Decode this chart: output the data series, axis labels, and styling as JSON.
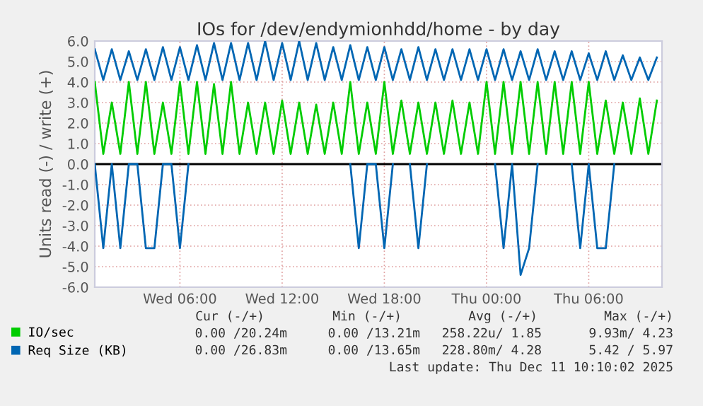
{
  "chart_data": {
    "type": "line",
    "title": "IOs for /dev/endymionhdd/home - by day",
    "ylabel": "Units read (-) / write (+)",
    "x": [
      "2025-12-10T01:00",
      "2025-12-10T01:30",
      "2025-12-10T02:00",
      "2025-12-10T02:30",
      "2025-12-10T03:00",
      "2025-12-10T03:30",
      "2025-12-10T04:00",
      "2025-12-10T04:30",
      "2025-12-10T05:00",
      "2025-12-10T05:30",
      "2025-12-10T06:00",
      "2025-12-10T06:30",
      "2025-12-10T07:00",
      "2025-12-10T07:30",
      "2025-12-10T08:00",
      "2025-12-10T08:30",
      "2025-12-10T09:00",
      "2025-12-10T09:30",
      "2025-12-10T10:00",
      "2025-12-10T10:30",
      "2025-12-10T11:00",
      "2025-12-10T11:30",
      "2025-12-10T12:00",
      "2025-12-10T12:30",
      "2025-12-10T13:00",
      "2025-12-10T13:30",
      "2025-12-10T14:00",
      "2025-12-10T14:30",
      "2025-12-10T15:00",
      "2025-12-10T15:30",
      "2025-12-10T16:00",
      "2025-12-10T16:30",
      "2025-12-10T17:00",
      "2025-12-10T17:30",
      "2025-12-10T18:00",
      "2025-12-10T18:30",
      "2025-12-10T19:00",
      "2025-12-10T19:30",
      "2025-12-10T20:00",
      "2025-12-10T20:30",
      "2025-12-10T21:00",
      "2025-12-10T21:30",
      "2025-12-10T22:00",
      "2025-12-10T22:30",
      "2025-12-10T23:00",
      "2025-12-10T23:30",
      "2025-12-11T00:00",
      "2025-12-11T00:30",
      "2025-12-11T01:00",
      "2025-12-11T01:30",
      "2025-12-11T02:00",
      "2025-12-11T02:30",
      "2025-12-11T03:00",
      "2025-12-11T03:30",
      "2025-12-11T04:00",
      "2025-12-11T04:30",
      "2025-12-11T05:00",
      "2025-12-11T05:30",
      "2025-12-11T06:00",
      "2025-12-11T06:30",
      "2025-12-11T07:00",
      "2025-12-11T07:30",
      "2025-12-11T08:00",
      "2025-12-11T08:30",
      "2025-12-11T09:00",
      "2025-12-11T09:30",
      "2025-12-11T10:00"
    ],
    "series": [
      {
        "name": "IO/sec",
        "color": "#00cc00",
        "values": [
          4.0,
          0.5,
          3.0,
          0.5,
          4.0,
          0.5,
          4.0,
          0.5,
          3.0,
          0.5,
          4.0,
          0.5,
          4.0,
          0.5,
          3.9,
          0.5,
          4.0,
          0.5,
          3.0,
          0.5,
          3.0,
          0.5,
          3.1,
          0.5,
          3.0,
          0.5,
          2.9,
          0.5,
          3.0,
          0.5,
          4.0,
          0.5,
          3.0,
          0.5,
          4.0,
          0.5,
          3.1,
          0.5,
          3.0,
          0.5,
          3.0,
          0.5,
          3.1,
          0.5,
          3.0,
          0.5,
          4.0,
          0.5,
          4.0,
          0.5,
          4.0,
          0.5,
          4.0,
          0.5,
          4.0,
          0.5,
          4.0,
          0.5,
          4.0,
          0.5,
          3.1,
          0.5,
          3.0,
          0.5,
          3.2,
          0.5,
          3.1
        ]
      },
      {
        "name": "Req Size (KB)",
        "color": "#0066b3",
        "values": [
          5.6,
          4.1,
          5.6,
          4.1,
          5.5,
          4.1,
          5.6,
          4.1,
          5.7,
          4.1,
          5.7,
          4.1,
          5.8,
          4.1,
          5.9,
          4.1,
          5.9,
          4.1,
          5.9,
          4.1,
          6.0,
          4.1,
          5.9,
          4.1,
          6.0,
          4.1,
          5.9,
          4.1,
          5.7,
          4.1,
          5.8,
          4.1,
          5.7,
          4.1,
          5.7,
          4.1,
          5.6,
          4.1,
          5.7,
          4.1,
          5.6,
          4.1,
          5.6,
          4.1,
          5.6,
          4.1,
          5.6,
          4.1,
          5.6,
          4.1,
          5.5,
          4.1,
          5.6,
          4.1,
          5.5,
          4.1,
          5.5,
          4.1,
          5.4,
          4.1,
          5.5,
          4.1,
          5.3,
          4.1,
          5.2,
          4.1,
          5.2
        ]
      },
      {
        "color": "#0066b3",
        "values": [
          0.0,
          -4.1,
          0.0,
          -4.1,
          0.0,
          0.0,
          -4.1,
          -4.1,
          0.0,
          0.0,
          -4.1,
          0.0,
          null,
          null,
          null,
          null,
          null,
          null,
          null,
          null,
          null,
          null,
          null,
          null,
          null,
          null,
          null,
          null,
          null,
          null,
          0.0,
          -4.1,
          0.0,
          0.0,
          -4.1,
          0.0,
          null,
          0.0,
          -4.1,
          0.0,
          null,
          null,
          null,
          null,
          null,
          null,
          null,
          0.0,
          -4.1,
          0.0,
          -5.4,
          -4.1,
          0.0,
          null,
          null,
          null,
          0.0,
          -4.1,
          0.0,
          -4.1,
          -4.1,
          0.0,
          null,
          null,
          null,
          null,
          null
        ]
      }
    ],
    "xlim": [
      "2025-12-10T01:00",
      "2025-12-11T10:18"
    ],
    "xticks": [
      {
        "value": "2025-12-10T06:00",
        "label": "Wed 06:00"
      },
      {
        "value": "2025-12-10T12:00",
        "label": "Wed 12:00"
      },
      {
        "value": "2025-12-10T18:00",
        "label": "Wed 18:00"
      },
      {
        "value": "2025-12-11T00:00",
        "label": "Thu 00:00"
      },
      {
        "value": "2025-12-11T06:00",
        "label": "Thu 06:00"
      }
    ],
    "ylim": [
      -6.0,
      6.0
    ],
    "yticks": [
      {
        "value": -6,
        "label": "-6.0"
      },
      {
        "value": -5,
        "label": "-5.0"
      },
      {
        "value": -4,
        "label": "-4.0"
      },
      {
        "value": -3,
        "label": "-3.0"
      },
      {
        "value": -2,
        "label": "-2.0"
      },
      {
        "value": -1,
        "label": "-1.0"
      },
      {
        "value": 0,
        "label": "0.0"
      },
      {
        "value": 1,
        "label": "1.0"
      },
      {
        "value": 2,
        "label": "2.0"
      },
      {
        "value": 3,
        "label": "3.0"
      },
      {
        "value": 4,
        "label": "4.0"
      },
      {
        "value": 5,
        "label": "5.0"
      },
      {
        "value": 6,
        "label": "6.0"
      }
    ],
    "ref_lines": [
      {
        "axis": "y",
        "value": 0,
        "color": "#000000"
      }
    ],
    "grid": true,
    "legend": "bottom left",
    "marker": "none",
    "line_style": "solid",
    "annotations": [
      "Cur (-/+)",
      "Min (-/+)",
      "Avg (-/+)",
      "Max (-/+)",
      "0.00 /20.24m",
      "0.00 /13.21m",
      "258.22u/ 1.85",
      "9.93m/ 4.23",
      "0.00 /26.83m",
      "0.00 /13.65m",
      "228.80m/ 4.28",
      "5.42 / 5.97",
      "Last update: Thu Dec 11 10:10:02 2025"
    ]
  }
}
